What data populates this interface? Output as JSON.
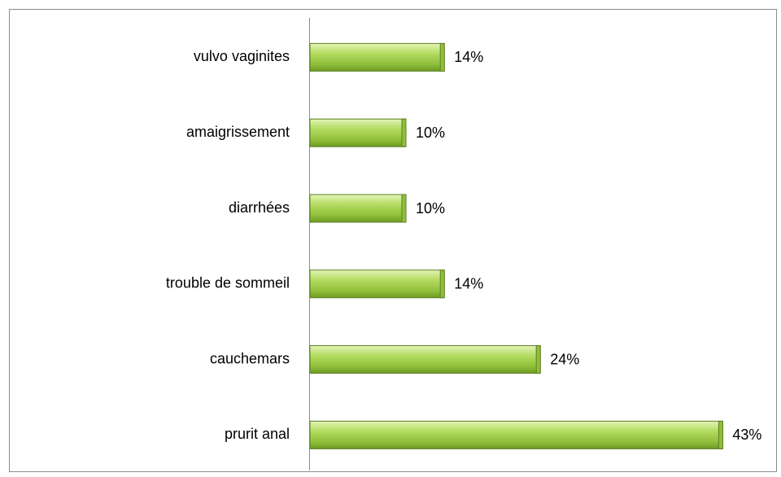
{
  "chart_data": {
    "type": "bar",
    "orientation": "horizontal",
    "categories": [
      "vulvo vaginites",
      "amaigrissement",
      "diarrhées",
      "trouble de sommeil",
      "cauchemars",
      "prurit anal"
    ],
    "values": [
      14,
      10,
      10,
      14,
      24,
      43
    ],
    "value_labels": [
      "14%",
      "10%",
      "10%",
      "14%",
      "24%",
      "43%"
    ],
    "color": "#8fbf3a"
  }
}
